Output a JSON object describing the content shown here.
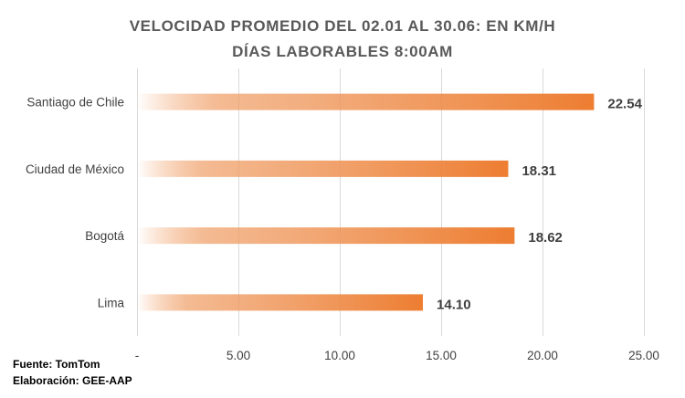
{
  "chart_data": {
    "type": "bar",
    "orientation": "horizontal",
    "title_lines": [
      "VELOCIDAD PROMEDIO DEL 02.01 AL 30.06: EN KM/H",
      "DÍAS LABORABLES 8:00AM"
    ],
    "categories": [
      "Santiago de Chile",
      "Ciudad de México",
      "Bogotá",
      "Lima"
    ],
    "values": [
      22.54,
      18.31,
      18.62,
      14.1
    ],
    "data_labels": [
      "22.54",
      "18.31",
      "18.62",
      "14.10"
    ],
    "xlim": [
      0,
      25
    ],
    "xticks": [
      0,
      5,
      10,
      15,
      20,
      25
    ],
    "xtick_labels": [
      "-",
      "5.00",
      "10.00",
      "15.00",
      "20.00",
      "25.00"
    ],
    "grid": true,
    "bar_color": "#ed7d31",
    "bar_style": "gradient from transparent (left) to solid orange (right)"
  },
  "footer": {
    "source": "Fuente: TomTom",
    "credit": "Elaboración: GEE-AAP"
  }
}
